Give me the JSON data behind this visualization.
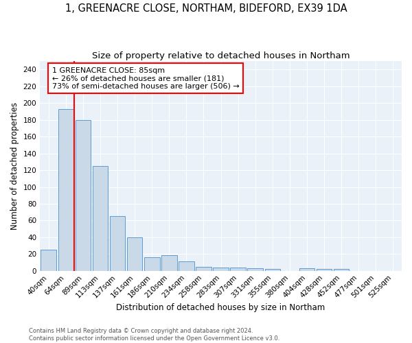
{
  "title1": "1, GREENACRE CLOSE, NORTHAM, BIDEFORD, EX39 1DA",
  "title2": "Size of property relative to detached houses in Northam",
  "xlabel": "Distribution of detached houses by size in Northam",
  "ylabel": "Number of detached properties",
  "bin_labels": [
    "40sqm",
    "64sqm",
    "89sqm",
    "113sqm",
    "137sqm",
    "161sqm",
    "186sqm",
    "210sqm",
    "234sqm",
    "258sqm",
    "283sqm",
    "307sqm",
    "331sqm",
    "355sqm",
    "380sqm",
    "404sqm",
    "428sqm",
    "452sqm",
    "477sqm",
    "501sqm",
    "525sqm"
  ],
  "bar_values": [
    25,
    193,
    180,
    125,
    65,
    40,
    16,
    19,
    11,
    5,
    4,
    4,
    3,
    2,
    0,
    3,
    2,
    2,
    0,
    0,
    0
  ],
  "bar_color": "#c9d9e8",
  "bar_edge_color": "#5b9bd5",
  "annotation_text": "1 GREENACRE CLOSE: 85sqm\n← 26% of detached houses are smaller (181)\n73% of semi-detached houses are larger (506) →",
  "annotation_box_color": "white",
  "annotation_box_edge_color": "red",
  "red_line_color": "red",
  "footer_text": "Contains HM Land Registry data © Crown copyright and database right 2024.\nContains public sector information licensed under the Open Government Licence v3.0.",
  "ylim": [
    0,
    250
  ],
  "yticks": [
    0,
    20,
    40,
    60,
    80,
    100,
    120,
    140,
    160,
    180,
    200,
    220,
    240
  ],
  "background_color": "#eaf1f8",
  "grid_color": "white",
  "title1_fontsize": 10.5,
  "title2_fontsize": 9.5,
  "xlabel_fontsize": 8.5,
  "ylabel_fontsize": 8.5,
  "tick_fontsize": 7.5,
  "annotation_fontsize": 8,
  "footer_fontsize": 6.0
}
